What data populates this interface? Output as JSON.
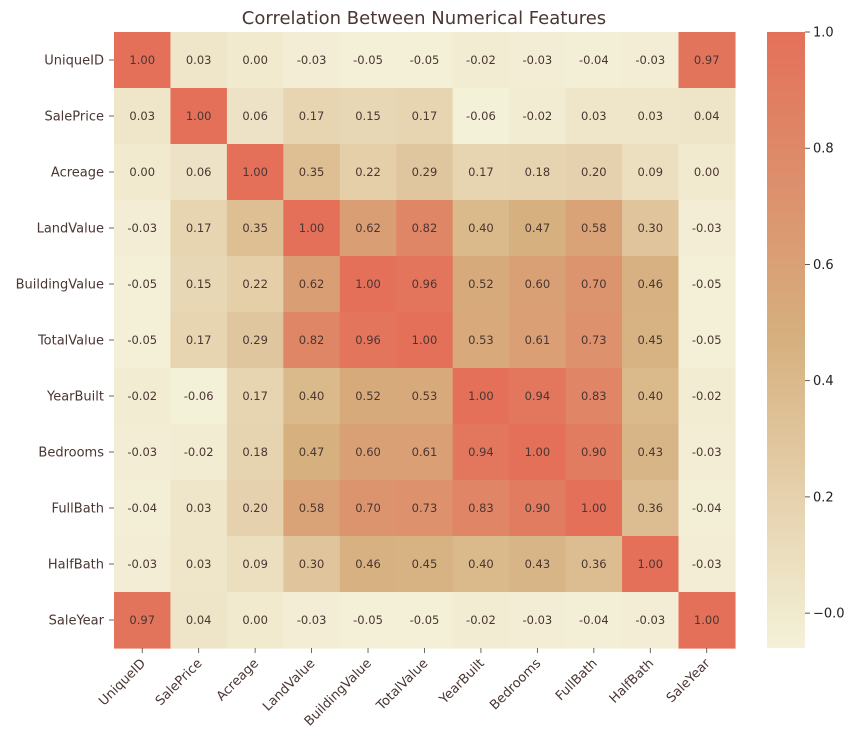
{
  "chart_data": {
    "type": "heatmap",
    "title": "Correlation Between Numerical Features",
    "row_labels": [
      "UniqueID",
      "SalePrice",
      "Acreage",
      "LandValue",
      "BuildingValue",
      "TotalValue",
      "YearBuilt",
      "Bedrooms",
      "FullBath",
      "HalfBath",
      "SaleYear"
    ],
    "col_labels": [
      "UniqueID",
      "SalePrice",
      "Acreage",
      "LandValue",
      "BuildingValue",
      "TotalValue",
      "YearBuilt",
      "Bedrooms",
      "FullBath",
      "HalfBath",
      "SaleYear"
    ],
    "values": [
      [
        1.0,
        0.03,
        0.0,
        -0.03,
        -0.05,
        -0.05,
        -0.02,
        -0.03,
        -0.04,
        -0.03,
        0.97
      ],
      [
        0.03,
        1.0,
        0.06,
        0.17,
        0.15,
        0.17,
        -0.06,
        -0.02,
        0.03,
        0.03,
        0.04
      ],
      [
        0.0,
        0.06,
        1.0,
        0.35,
        0.22,
        0.29,
        0.17,
        0.18,
        0.2,
        0.09,
        0.0
      ],
      [
        -0.03,
        0.17,
        0.35,
        1.0,
        0.62,
        0.82,
        0.4,
        0.47,
        0.58,
        0.3,
        -0.03
      ],
      [
        -0.05,
        0.15,
        0.22,
        0.62,
        1.0,
        0.96,
        0.52,
        0.6,
        0.7,
        0.46,
        -0.05
      ],
      [
        -0.05,
        0.17,
        0.29,
        0.82,
        0.96,
        1.0,
        0.53,
        0.61,
        0.73,
        0.45,
        -0.05
      ],
      [
        -0.02,
        -0.06,
        0.17,
        0.4,
        0.52,
        0.53,
        1.0,
        0.94,
        0.83,
        0.4,
        -0.02
      ],
      [
        -0.03,
        -0.02,
        0.18,
        0.47,
        0.6,
        0.61,
        0.94,
        1.0,
        0.9,
        0.43,
        -0.03
      ],
      [
        -0.04,
        0.03,
        0.2,
        0.58,
        0.7,
        0.73,
        0.83,
        0.9,
        1.0,
        0.36,
        -0.04
      ],
      [
        -0.03,
        0.03,
        0.09,
        0.3,
        0.46,
        0.45,
        0.4,
        0.43,
        0.36,
        1.0,
        -0.03
      ],
      [
        0.97,
        0.04,
        0.0,
        -0.03,
        -0.05,
        -0.05,
        -0.02,
        -0.03,
        -0.04,
        -0.03,
        1.0
      ]
    ],
    "colorbar": {
      "ticks": [
        -0.0,
        0.2,
        0.4,
        0.6,
        0.8,
        1.0
      ],
      "tick_labels": [
        "−0.0",
        "0.2",
        "0.4",
        "0.6",
        "0.8",
        "1.0"
      ],
      "vmin": -0.06,
      "vmax": 1.0
    },
    "colors": {
      "low": "#f4f1d9",
      "mid": "#d6b07f",
      "high": "#e4705a",
      "text": "#4a3632"
    }
  }
}
